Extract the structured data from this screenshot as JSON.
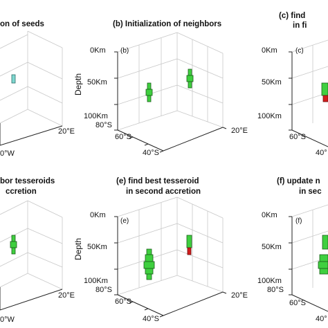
{
  "panels": [
    {
      "id": "a",
      "title_lines": [
        "on of seeds"
      ],
      "tag": "",
      "depth_ticks": [],
      "ylabel": "",
      "lat_ticks": [],
      "lon_ticks": [
        "20°E"
      ],
      "lon_ticks_left": [
        "0°W"
      ],
      "colors": {
        "green": "#3fcf3f",
        "red": "#d21c1c",
        "cyan": "#7ed8d0"
      }
    },
    {
      "id": "b",
      "title_lines": [
        "(b) Initialization of neighbors"
      ],
      "tag": "(b)",
      "depth_ticks": [
        "0Km",
        "50Km",
        "100Km"
      ],
      "ylabel": "Depth",
      "lat_ticks": [
        "80°S",
        "60°S",
        "40°S"
      ],
      "lon_ticks": [
        "20°E"
      ],
      "lon_ticks_left": []
    },
    {
      "id": "c",
      "title_lines": [
        "(c) find",
        "in fi"
      ],
      "tag": "(c)",
      "depth_ticks": [
        "0Km",
        "50Km",
        "100Km"
      ],
      "ylabel": "",
      "lat_ticks": [
        "60°S",
        "40°"
      ],
      "lon_ticks": [],
      "lon_ticks_left": []
    },
    {
      "id": "d",
      "title_lines": [
        "bor tesseroids",
        "ccretion"
      ],
      "tag": "",
      "depth_ticks": [],
      "ylabel": "",
      "lat_ticks": [],
      "lon_ticks": [
        "20°E"
      ],
      "lon_ticks_left": [
        "0°W"
      ]
    },
    {
      "id": "e",
      "title_lines": [
        "(e) find best tesseroid",
        "in second accretion"
      ],
      "tag": "(e)",
      "depth_ticks": [
        "0Km",
        "50Km",
        "100Km"
      ],
      "ylabel": "Depth",
      "lat_ticks": [
        "80°S",
        "60°S",
        "40°S"
      ],
      "lon_ticks": [
        "20°E"
      ],
      "lon_ticks_left": []
    },
    {
      "id": "f",
      "title_lines": [
        "(f) update n",
        "in sec"
      ],
      "tag": "(f)",
      "depth_ticks": [
        "0Km",
        "50Km",
        "100Km"
      ],
      "ylabel": "",
      "lat_ticks": [
        "80°S",
        "60°S",
        "40°"
      ],
      "lon_ticks": [],
      "lon_ticks_left": []
    }
  ]
}
